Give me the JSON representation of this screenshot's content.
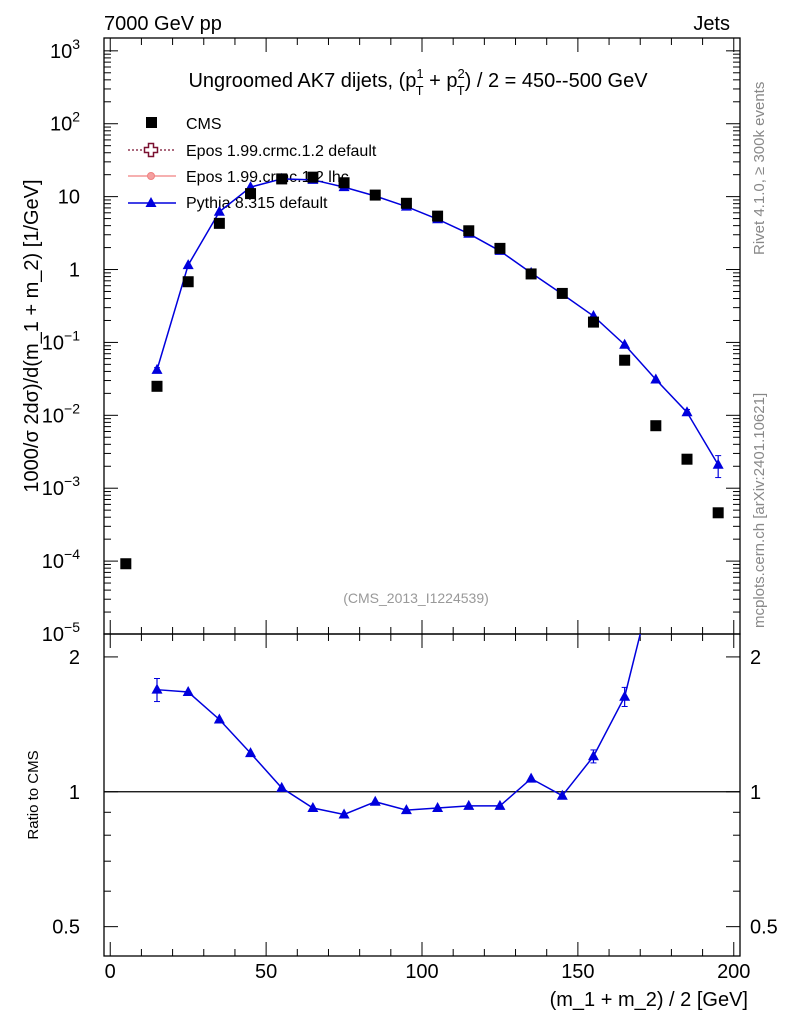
{
  "header": {
    "left": "7000 GeV pp",
    "right": "Jets"
  },
  "side_labels": {
    "rivet": "Rivet 4.1.0, ≥ 300k events",
    "mcplots": "mcplots.cern.ch [arXiv:2401.10621]"
  },
  "chart_data": {
    "type": "scatter",
    "title": {
      "main": "Ungroomed AK7 dijets, (p",
      "sup1": "1",
      "sub1": "T",
      "plus": " + p",
      "sup2": "2",
      "sub2": "T",
      "tail": ") / 2 = 450--500 GeV"
    },
    "watermark": "(CMS_2013_I1224539)",
    "xlabel": "(m_1 + m_2) / 2 [GeV]",
    "ylabel": "1000/σ  2dσ)/d(m_1 + m_2) [1/GeV]",
    "ratio_ylabel": "Ratio to CMS",
    "xlim": [
      -2,
      202
    ],
    "ylim": [
      1e-05,
      1500
    ],
    "yscale": "log",
    "ratio_ylim": [
      0.43,
      2.25
    ],
    "ratio_yscale": "log",
    "x_ticks": [
      0,
      50,
      100,
      150,
      200
    ],
    "x_tick_labels": [
      "0",
      "50",
      "100",
      "150",
      "200"
    ],
    "y_tick_labels": [
      {
        "base": "10",
        "exp": "3"
      },
      {
        "base": "10",
        "exp": "2"
      },
      {
        "base": "10",
        "exp": ""
      },
      {
        "base": "1",
        "exp": ""
      },
      {
        "base": "10",
        "exp": "−1"
      },
      {
        "base": "10",
        "exp": "−2"
      },
      {
        "base": "10",
        "exp": "−3"
      },
      {
        "base": "10",
        "exp": "−4"
      },
      {
        "base": "10",
        "exp": "−5"
      }
    ],
    "ratio_ticks": [
      0.5,
      1,
      2
    ],
    "ratio_tick_labels": [
      "0.5",
      "1",
      "2"
    ],
    "legend": {
      "position": "top-left",
      "entries": [
        "CMS",
        "Epos 1.99.crmc.1.2 default",
        "Epos 1.99.crmc.1.2 lhc",
        "Pythia 8.315 default"
      ]
    },
    "series": [
      {
        "name": "CMS",
        "marker": "square",
        "color": "#000000",
        "x": [
          5,
          15,
          25,
          35,
          45,
          55,
          65,
          75,
          85,
          95,
          105,
          115,
          125,
          135,
          145,
          155,
          165,
          175,
          185,
          195
        ],
        "y": [
          9.2e-05,
          0.025,
          0.68,
          4.3,
          11,
          17.5,
          18.5,
          15.5,
          10.5,
          8.1,
          5.4,
          3.4,
          1.95,
          0.87,
          0.47,
          0.19,
          0.057,
          0.0072,
          0.0025,
          0.00046
        ]
      },
      {
        "name": "Pythia 8.315 default",
        "marker": "triangle",
        "color": "#0000dd",
        "x": [
          15,
          25,
          35,
          45,
          55,
          65,
          75,
          85,
          95,
          105,
          115,
          125,
          135,
          145,
          155,
          165,
          175,
          185,
          195
        ],
        "y": [
          0.042,
          1.15,
          6.2,
          13.5,
          17.5,
          17,
          13.5,
          10.2,
          7.3,
          4.9,
          3.1,
          1.8,
          0.9,
          0.46,
          0.23,
          0.093,
          0.031,
          0.011,
          0.0021
        ],
        "yerr": [
          0.003,
          0,
          0,
          0,
          0,
          0,
          0,
          0,
          0,
          0,
          0,
          0,
          0,
          0,
          0,
          0,
          0,
          0.001,
          0.0007
        ]
      }
    ],
    "ratio_series": {
      "name": "Pythia 8.315 default / CMS",
      "color": "#0000dd",
      "x": [
        15,
        25,
        35,
        45,
        55,
        65,
        75,
        85,
        95,
        105,
        115,
        125,
        135,
        145,
        155,
        165
      ],
      "y": [
        1.69,
        1.67,
        1.45,
        1.22,
        1.02,
        0.92,
        0.89,
        0.95,
        0.91,
        0.92,
        0.93,
        0.93,
        1.07,
        0.98,
        1.2,
        1.63
      ],
      "yerr": [
        0.1,
        0,
        0,
        0,
        0,
        0,
        0,
        0,
        0,
        0,
        0,
        0,
        0,
        0,
        0.04,
        0.08
      ],
      "overflow_x": 170,
      "reference": 1
    }
  }
}
